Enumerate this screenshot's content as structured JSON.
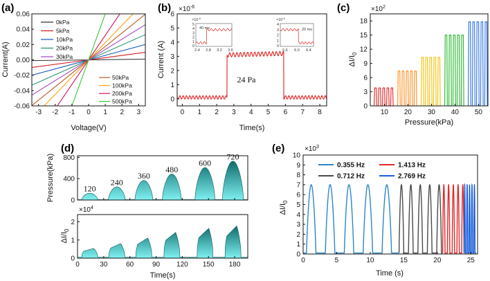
{
  "chart_data": [
    {
      "id": "a",
      "panel_label": "(a)",
      "type": "line",
      "xlabel": "Voltage(V)",
      "ylabel": "Current(A)",
      "xlim": [
        -3.4,
        3.4
      ],
      "ylim": [
        -0.06,
        0.06
      ],
      "xticks": [
        "-3",
        "-2",
        "-1",
        "0",
        "1",
        "2",
        "3"
      ],
      "yticks": [
        "-0.06",
        "-0.04",
        "-0.02",
        "0.00",
        "0.02",
        "0.04",
        "0.06"
      ],
      "legend_top": [
        "0kPa",
        "5kPa",
        "10kPa",
        "20kPa",
        "30kPa"
      ],
      "legend_bottom": [
        "50kPa",
        "100kPa",
        "200kPa",
        "500kPa"
      ],
      "series": [
        {
          "name": "0kPa",
          "slope": 0.0003,
          "color": "#333333"
        },
        {
          "name": "5kPa",
          "slope": 0.0029,
          "color": "#d11d1d"
        },
        {
          "name": "10kPa",
          "slope": 0.0059,
          "color": "#1f5fbf"
        },
        {
          "name": "20kPa",
          "slope": 0.0097,
          "color": "#24946d"
        },
        {
          "name": "30kPa",
          "slope": 0.0135,
          "color": "#a04bc9"
        },
        {
          "name": "50kPa",
          "slope": 0.0175,
          "color": "#b35a1f"
        },
        {
          "name": "100kPa",
          "slope": 0.0225,
          "color": "#ff9e0f"
        },
        {
          "name": "200kPa",
          "slope": 0.032,
          "color": "#d01060"
        },
        {
          "name": "500kPa",
          "slope": 0.06,
          "color": "#33cc33"
        }
      ]
    },
    {
      "id": "b",
      "panel_label": "(b)",
      "type": "line",
      "xlabel": "Time(s)",
      "ylabel": "Current (A)",
      "exponent": "×10",
      "exponent_power": "-6",
      "xlim": [
        -0.3,
        8.4
      ],
      "ylim": [
        -0.5,
        6
      ],
      "xticks": [
        "0",
        "1",
        "2",
        "3",
        "4",
        "5",
        "6",
        "7",
        "8"
      ],
      "yticks": [
        "0",
        "1",
        "2",
        "3",
        "4",
        "5",
        "6"
      ],
      "annotation": "24 Pa",
      "step": {
        "low": 0.1,
        "high": 3.1,
        "rise_t": 2.6,
        "fall_t": 5.9
      },
      "inset_left": {
        "label": "40 ms",
        "xticks": [
          "2.4",
          "2.8",
          "3.2",
          "3.6"
        ],
        "yticks": [
          "0",
          "1",
          "2",
          "3",
          "4",
          "5"
        ],
        "exponent": "×10",
        "exponent_power": "-6"
      },
      "inset_right": {
        "label": "20 ms",
        "xticks": [
          "5.6",
          "6.0",
          "6.4"
        ],
        "yticks": [
          "0",
          "1",
          "2",
          "3",
          "4"
        ],
        "exponent": "×10",
        "exponent_power": "-6"
      }
    },
    {
      "id": "c",
      "panel_label": "(c)",
      "type": "bar",
      "xlabel": "Pressure(kPa)",
      "ylabel": "ΔI/I",
      "ylabel_sub": "0",
      "exponent": "×10",
      "exponent_power": "2",
      "xlim": [
        4,
        54
      ],
      "ylim": [
        0,
        19.5
      ],
      "xticks": [
        "10",
        "20",
        "30",
        "40",
        "50"
      ],
      "yticks": [
        "0",
        "3",
        "6",
        "9",
        "12",
        "15",
        "18"
      ],
      "groups": [
        {
          "pressure": 10,
          "value": 3.8,
          "color": "#e02020"
        },
        {
          "pressure": 20,
          "value": 7.4,
          "color": "#ff8c1a"
        },
        {
          "pressure": 30,
          "value": 10.3,
          "color": "#f0c000"
        },
        {
          "pressure": 40,
          "value": 15.0,
          "color": "#22b52a"
        },
        {
          "pressure": 50,
          "value": 17.8,
          "color": "#2a6fe0"
        }
      ]
    },
    {
      "id": "d",
      "panel_label": "(d)",
      "type": "area",
      "xlabel": "Time(s)",
      "ylabel_top": "Pressure(kPa)",
      "ylabel_bottom": "ΔI/I",
      "ylabel_bottom_sub": "0",
      "exponent": "×10",
      "exponent_power": "4",
      "xlim": [
        0,
        195
      ],
      "xticks": [
        "0",
        "30",
        "60",
        "90",
        "120",
        "150",
        "180"
      ],
      "yticks_top": [
        "0",
        "400",
        "800"
      ],
      "ylim_top": [
        0,
        830
      ],
      "yticks_bottom": [
        "0",
        "1",
        "2"
      ],
      "ylim_bottom": [
        0,
        2.4
      ],
      "pressures": [
        120,
        240,
        360,
        480,
        600,
        720
      ],
      "pressure_labels": [
        "120",
        "240",
        "360",
        "480",
        "600",
        "720"
      ],
      "peak_times": [
        14,
        45,
        76,
        108,
        146,
        178
      ],
      "response_peaks": [
        0.55,
        0.85,
        1.2,
        1.55,
        1.8,
        1.95
      ]
    },
    {
      "id": "e",
      "panel_label": "(e)",
      "type": "line",
      "xlabel": "Time (s)",
      "ylabel": "ΔI/I",
      "ylabel_sub": "0",
      "exponent": "×10",
      "exponent_power": "3",
      "xlim": [
        0,
        26
      ],
      "ylim": [
        0,
        10
      ],
      "xticks": [
        "0",
        "5",
        "10",
        "15",
        "20",
        "25"
      ],
      "yticks": [
        "0",
        "1",
        "2",
        "3",
        "4",
        "5",
        "6",
        "7",
        "8",
        "9",
        "10"
      ],
      "peak": 7,
      "series": [
        {
          "name": "0.355 Hz",
          "color": "#2a86c8",
          "start": 0.5,
          "end": 14.3
        },
        {
          "name": "0.712 Hz",
          "color": "#4a4a4a",
          "start": 14.3,
          "end": 20.8
        },
        {
          "name": "1.413 Hz",
          "color": "#e02828",
          "start": 20.8,
          "end": 24.0
        },
        {
          "name": "2.769 Hz",
          "color": "#1a5fd8",
          "start": 24.0,
          "end": 25.8
        }
      ]
    }
  ]
}
